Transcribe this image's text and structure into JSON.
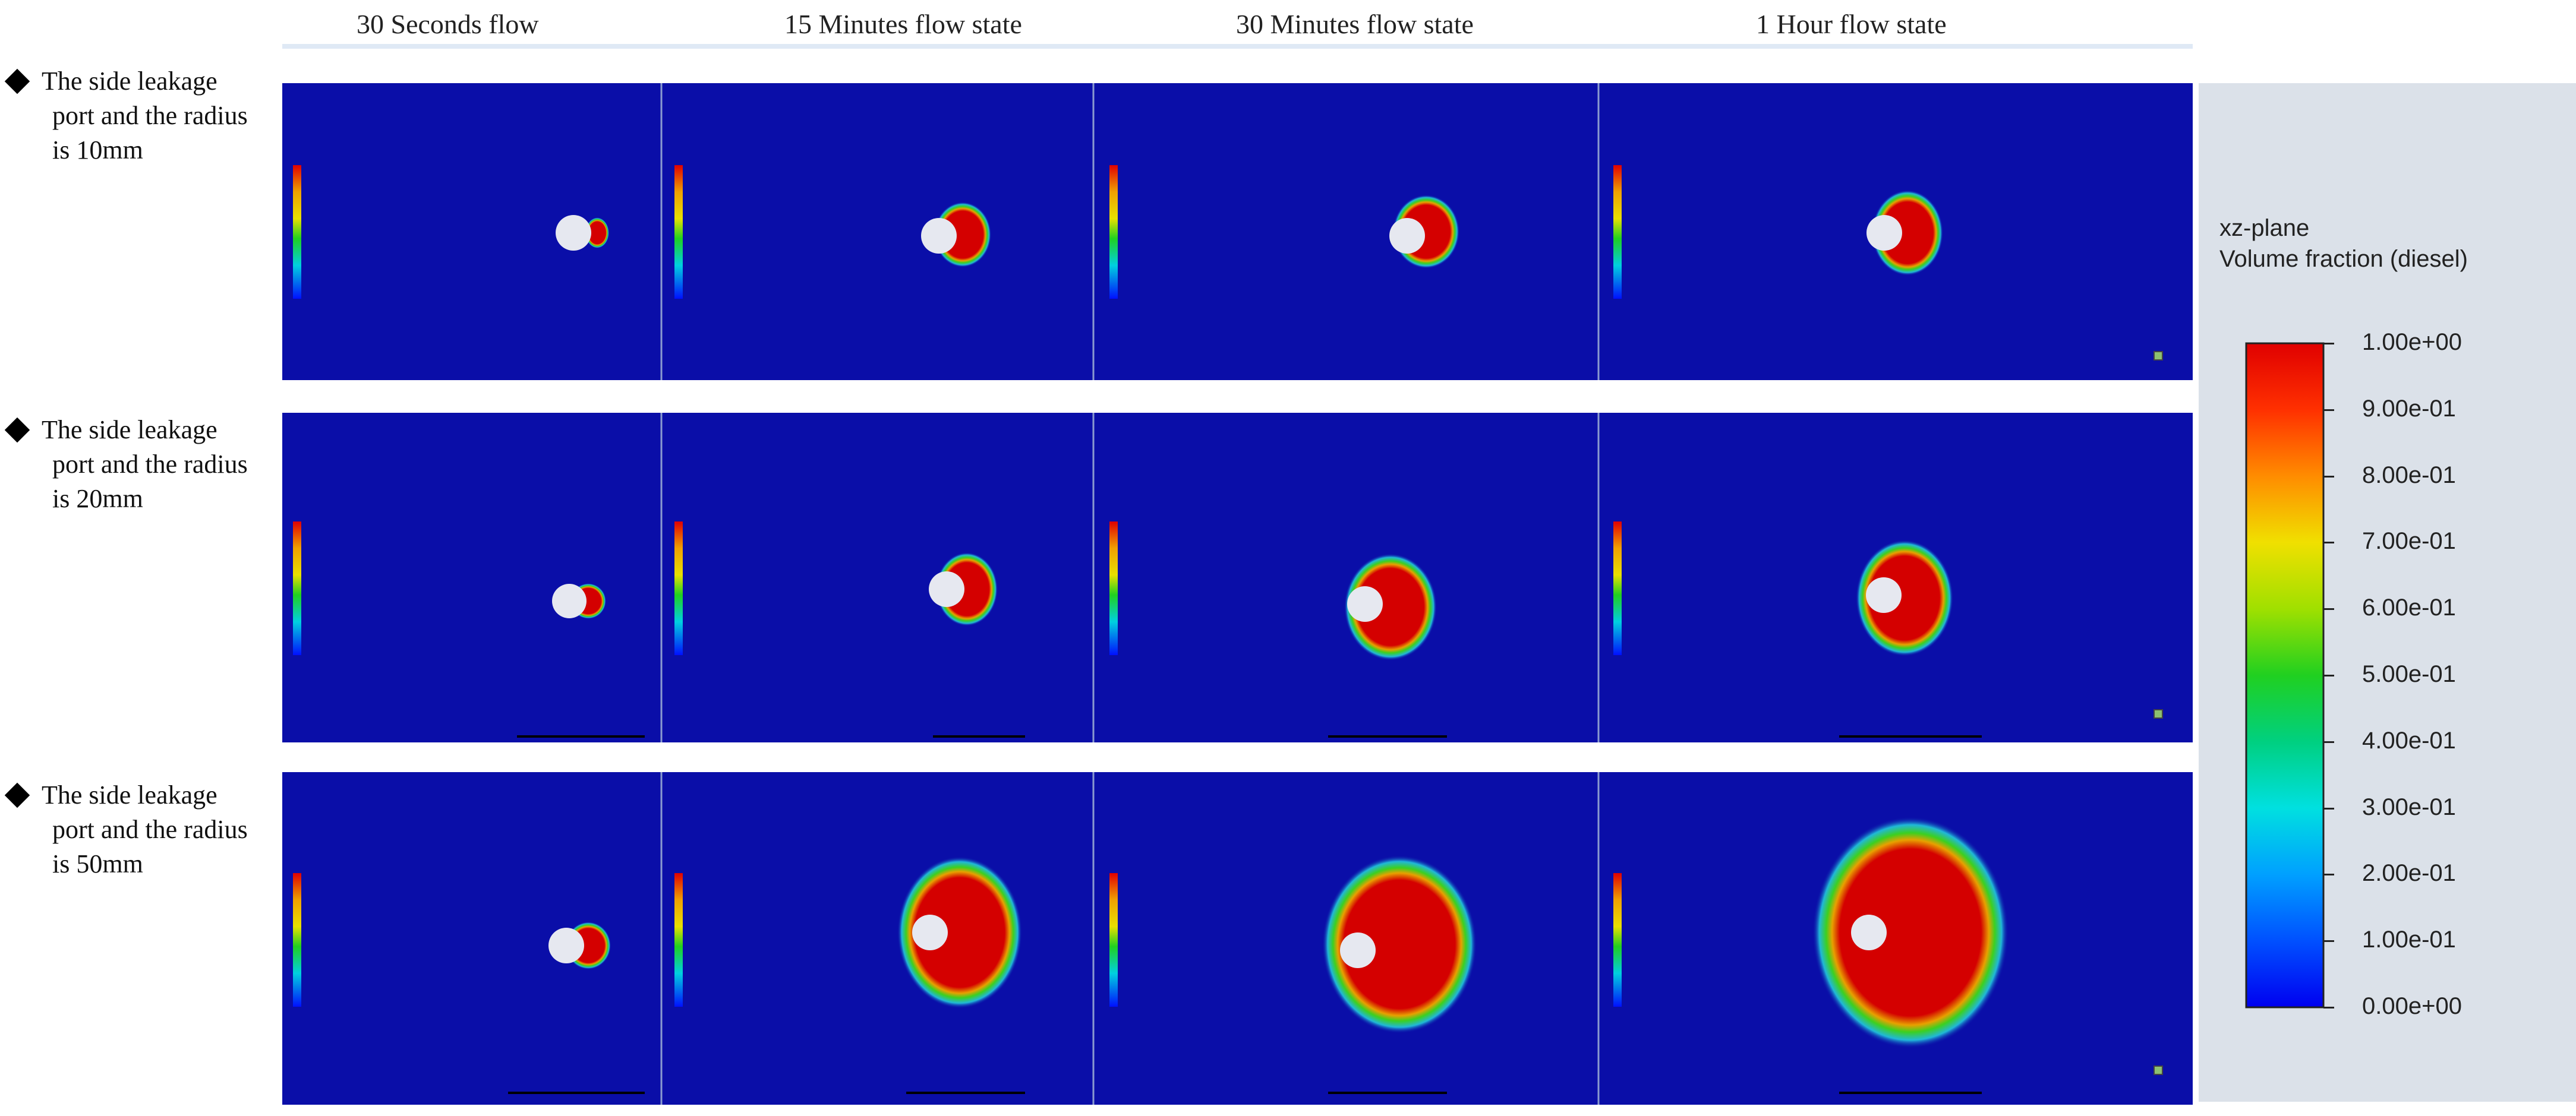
{
  "columns": [
    {
      "title": "30 Seconds flow"
    },
    {
      "title": "15 Minutes flow state"
    },
    {
      "title": "30 Minutes flow state"
    },
    {
      "title": "1 Hour flow state"
    }
  ],
  "rows": [
    {
      "label_lines": [
        "The side leakage",
        "port and the radius",
        "is 10mm"
      ]
    },
    {
      "label_lines": [
        "The side leakage",
        "port and the radius",
        "is 20mm"
      ]
    },
    {
      "label_lines": [
        "The side leakage",
        "port and the radius",
        "is 50mm"
      ]
    }
  ],
  "legend": {
    "title_line1": "xz-plane",
    "title_line2": "Volume fraction (diesel)",
    "ticks": [
      "1.00e+00",
      "9.00e-01",
      "8.00e-01",
      "7.00e-01",
      "6.00e-01",
      "5.00e-01",
      "4.00e-01",
      "3.00e-01",
      "2.00e-01",
      "1.00e-01",
      "0.00e+00"
    ]
  },
  "colors": {
    "background_fluid": "#0a0ea8",
    "plume_core": "#d40000",
    "pipe": "#e6e8f0"
  }
}
